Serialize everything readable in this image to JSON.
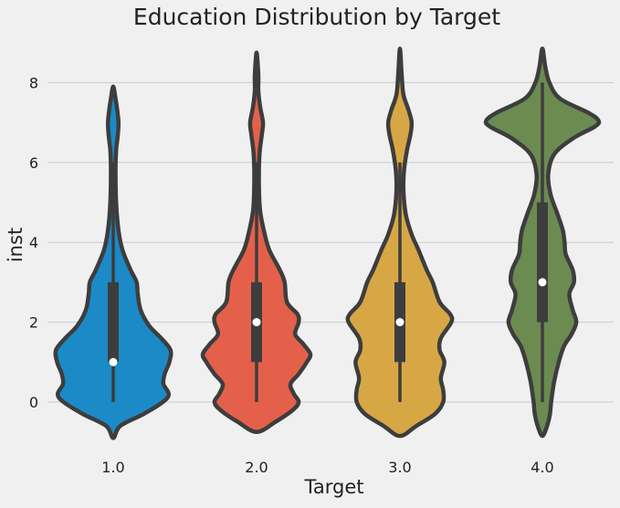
{
  "chart_data": {
    "type": "violin",
    "title": "Education Distribution by Target",
    "xlabel": "Target",
    "ylabel": "inst",
    "categories": [
      "1.0",
      "2.0",
      "3.0",
      "4.0"
    ],
    "ylim": [
      -1,
      9.2
    ],
    "yticks": [
      0,
      2,
      4,
      6,
      8
    ],
    "ytick_labels": [
      "0",
      "2",
      "4",
      "6",
      "8"
    ],
    "grid": "horizontal",
    "colors": {
      "background": "#f0f0f0",
      "grid": "#cbcbcb",
      "outline": "#3d3d3d",
      "median_marker": "#ffffff",
      "text": "#222222"
    },
    "series": [
      {
        "category": "1.0",
        "color": "#1b8ac7",
        "quartiles": {
          "q1": 1,
          "median": 1,
          "q3": 3
        },
        "whiskers": {
          "low": 0,
          "high": 6
        },
        "range": [
          -0.9,
          7.9
        ],
        "density_profile": [
          [
            -0.9,
            0.0
          ],
          [
            -0.6,
            0.12
          ],
          [
            -0.3,
            0.52
          ],
          [
            0.0,
            0.85
          ],
          [
            0.2,
            0.95
          ],
          [
            0.45,
            0.86
          ],
          [
            0.7,
            0.88
          ],
          [
            1.0,
            0.96
          ],
          [
            1.3,
            0.98
          ],
          [
            1.6,
            0.82
          ],
          [
            1.9,
            0.62
          ],
          [
            2.3,
            0.47
          ],
          [
            2.7,
            0.42
          ],
          [
            3.0,
            0.4
          ],
          [
            3.3,
            0.3
          ],
          [
            3.8,
            0.16
          ],
          [
            4.3,
            0.09
          ],
          [
            5.0,
            0.05
          ],
          [
            5.8,
            0.04
          ],
          [
            6.3,
            0.05
          ],
          [
            6.7,
            0.08
          ],
          [
            7.0,
            0.09
          ],
          [
            7.3,
            0.07
          ],
          [
            7.6,
            0.04
          ],
          [
            7.9,
            0.0
          ]
        ]
      },
      {
        "category": "2.0",
        "color": "#e5604b",
        "quartiles": {
          "q1": 1,
          "median": 2,
          "q3": 3
        },
        "whiskers": {
          "low": 0,
          "high": 6
        },
        "range": [
          -0.75,
          8.75
        ],
        "density_profile": [
          [
            -0.75,
            0.0
          ],
          [
            -0.5,
            0.32
          ],
          [
            -0.2,
            0.62
          ],
          [
            0.0,
            0.72
          ],
          [
            0.2,
            0.64
          ],
          [
            0.45,
            0.58
          ],
          [
            0.7,
            0.72
          ],
          [
            1.0,
            0.86
          ],
          [
            1.2,
            0.92
          ],
          [
            1.45,
            0.8
          ],
          [
            1.7,
            0.66
          ],
          [
            2.0,
            0.72
          ],
          [
            2.2,
            0.7
          ],
          [
            2.5,
            0.52
          ],
          [
            3.0,
            0.48
          ],
          [
            3.3,
            0.4
          ],
          [
            3.8,
            0.22
          ],
          [
            4.2,
            0.14
          ],
          [
            4.8,
            0.06
          ],
          [
            5.5,
            0.04
          ],
          [
            6.2,
            0.05
          ],
          [
            6.7,
            0.09
          ],
          [
            7.0,
            0.11
          ],
          [
            7.4,
            0.06
          ],
          [
            7.8,
            0.03
          ],
          [
            8.2,
            0.03
          ],
          [
            8.75,
            0.0
          ]
        ]
      },
      {
        "category": "3.0",
        "color": "#d8a745",
        "quartiles": {
          "q1": 1,
          "median": 2,
          "q3": 3
        },
        "whiskers": {
          "low": 0,
          "high": 6
        },
        "range": [
          -0.85,
          8.85
        ],
        "density_profile": [
          [
            -0.85,
            0.0
          ],
          [
            -0.6,
            0.28
          ],
          [
            -0.3,
            0.6
          ],
          [
            0.0,
            0.74
          ],
          [
            0.3,
            0.74
          ],
          [
            0.6,
            0.7
          ],
          [
            1.0,
            0.76
          ],
          [
            1.3,
            0.68
          ],
          [
            1.6,
            0.7
          ],
          [
            2.0,
            0.88
          ],
          [
            2.2,
            0.86
          ],
          [
            2.5,
            0.68
          ],
          [
            3.0,
            0.56
          ],
          [
            3.3,
            0.46
          ],
          [
            3.8,
            0.32
          ],
          [
            4.2,
            0.2
          ],
          [
            4.7,
            0.1
          ],
          [
            5.3,
            0.06
          ],
          [
            5.8,
            0.07
          ],
          [
            6.3,
            0.12
          ],
          [
            6.7,
            0.18
          ],
          [
            7.0,
            0.2
          ],
          [
            7.3,
            0.15
          ],
          [
            7.7,
            0.06
          ],
          [
            8.2,
            0.03
          ],
          [
            8.85,
            0.0
          ]
        ]
      },
      {
        "category": "4.0",
        "color": "#6b8b51",
        "quartiles": {
          "q1": 2,
          "median": 3,
          "q3": 5
        },
        "whiskers": {
          "low": 0,
          "high": 8
        },
        "range": [
          -0.85,
          8.85
        ],
        "density_profile": [
          [
            -0.85,
            0.0
          ],
          [
            -0.6,
            0.08
          ],
          [
            -0.3,
            0.13
          ],
          [
            0.0,
            0.15
          ],
          [
            0.5,
            0.2
          ],
          [
            1.0,
            0.28
          ],
          [
            1.4,
            0.37
          ],
          [
            1.7,
            0.5
          ],
          [
            2.0,
            0.58
          ],
          [
            2.3,
            0.52
          ],
          [
            2.7,
            0.46
          ],
          [
            3.0,
            0.54
          ],
          [
            3.3,
            0.52
          ],
          [
            3.7,
            0.4
          ],
          [
            4.0,
            0.38
          ],
          [
            4.3,
            0.35
          ],
          [
            4.7,
            0.26
          ],
          [
            5.2,
            0.14
          ],
          [
            5.7,
            0.1
          ],
          [
            6.2,
            0.2
          ],
          [
            6.6,
            0.52
          ],
          [
            6.9,
            0.9
          ],
          [
            7.05,
            0.96
          ],
          [
            7.25,
            0.78
          ],
          [
            7.6,
            0.3
          ],
          [
            8.0,
            0.12
          ],
          [
            8.4,
            0.05
          ],
          [
            8.85,
            0.0
          ]
        ]
      }
    ]
  }
}
